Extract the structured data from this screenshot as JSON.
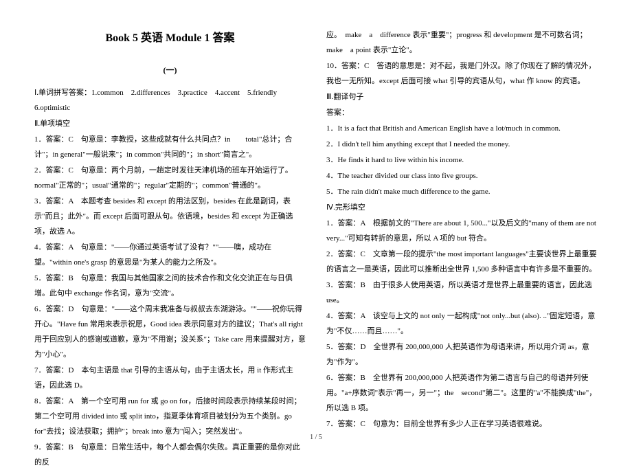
{
  "title": "Book 5 英语 Module 1 答案",
  "subtitle": "(一)",
  "left": {
    "sec1": "Ⅰ.单词拼写答案：1.common　2.differences　3.practice　4.accent　5.friendly　6.optimistic",
    "sec2h": "Ⅱ.单项填空",
    "a1": "1．答案：C　句意是：李教授，这些成就有什么共同点？in　　total\"总计；合计\"；in general\"一般说来\"；in common\"共同的\"；in short\"简言之\"。",
    "a2": "2．答案：C　句意是：两个月前，一趟定时发往天津机场的班车开始运行了。normal\"正常的\"；usual\"通常的\"；regular\"定期的\"；common\"普通的\"。",
    "a3": "3．答案：A　本题考查 besides 和 except 的用法区别，besides 在此是副词，表示\"而且；此外\"。而 except 后面可跟从句。依语境，besides 和 except 为正确选项，故选 A。",
    "a4": "4．答案：A　句意是：\"——你通过英语考试了没有？\"\"——噢，成功在望。\"within one's grasp 的意思是\"为某人的能力之所及\"。",
    "a5": "5．答案：B　句意是：我国与其他国家之间的技术合作和文化交流正在与日俱增。此句中 exchange 作名词，意为\"交流\"。",
    "a6": "6．答案：D　句意是：\"——这个周末我准备与叔叔去东湖游泳。\"\"——祝你玩得开心。\"Have fun 常用来表示祝愿，Good idea 表示同意对方的建议；That's all right 用于回应别人的感谢或道歉，意为\"不用谢；没关系\"；Take care 用来提醒对方，意为\"小心\"。",
    "a7": "7．答案：D　本句主语是 that 引导的主语从句，由于主语太长，用 it 作形式主语，因此选 D。",
    "a8": "8．答案：A　第一个空可用 run for 或 go on for，后接时间段表示持续某段时间；第二个空可用 divided into 或 split into，指夏季体育项目被划分为五个类别。go for\"去找；设法获取；拥护\"；break into 意为\"闯入；突然发出\"。",
    "a9": "9．答案：B　句意是：日常生活中，每个人都会偶尔失败。真正重要的是你对此的反"
  },
  "right": {
    "r0": "应。　make　a　difference 表示\"重要\"；progress 和 development 是不可数名词；make　a point 表示\"立论\"。",
    "r1": "10．答案：C　答语的意思是：对不起，我是门外汉。除了你现在了解的情况外，我也一无所知。except 后面可接 what 引导的宾语从句，what 作 know 的宾语。",
    "r2h": "Ⅲ.翻译句子",
    "r2a": "答案：",
    "t1": "1．It is a fact that British and American English have a lot/much in common.",
    "t2": "2．I didn't tell him anything except that I needed the money.",
    "t3": "3．He finds it hard to live within his income.",
    "t4": "4．The teacher divided our class into five groups.",
    "t5": "5．The rain didn't make much difference to the game.",
    "r3h": "Ⅳ.完形填空",
    "c1": "1．答案：A　根据前文的\"There are about 1, 500...\"以及后文的\"many of them are not very...\"可知有转折的意思，所以 A 项的 but 符合。",
    "c2": "2．答案：C　文章第一段的提示\"the most important languages\"主要谈世界上最重要的语言之一是英语，因此可以推断出全世界 1,500 多种语言中有许多是不重要的。",
    "c3": "3．答案：B　由于很多人使用英语，所以英语才是世界上最重要的语言，因此选 use。",
    "c4": "4．答案：A　该空与上文的 not only 一起构成\"not only...but (also). ..\"固定短语，意为\"不仅……而且……\"。",
    "c5": "5．答案：D　全世界有 200,000,000 人把英语作为母语来讲，所以用介词 as，意为\"作为\"。",
    "c6": "6．答案：B　全世界有 200,000,000 人把英语作为第二语言与自己的母语并列使用。\"a+序数词\"表示\"再一，另一\"；the　second\"第二\"。这里的\"a\"不能换成\"the\"，所以选 B 项。",
    "c7": "7．答案：C　句意为：目前全世界有多少人正在学习英语很难说。"
  },
  "footer": "1 / 5"
}
